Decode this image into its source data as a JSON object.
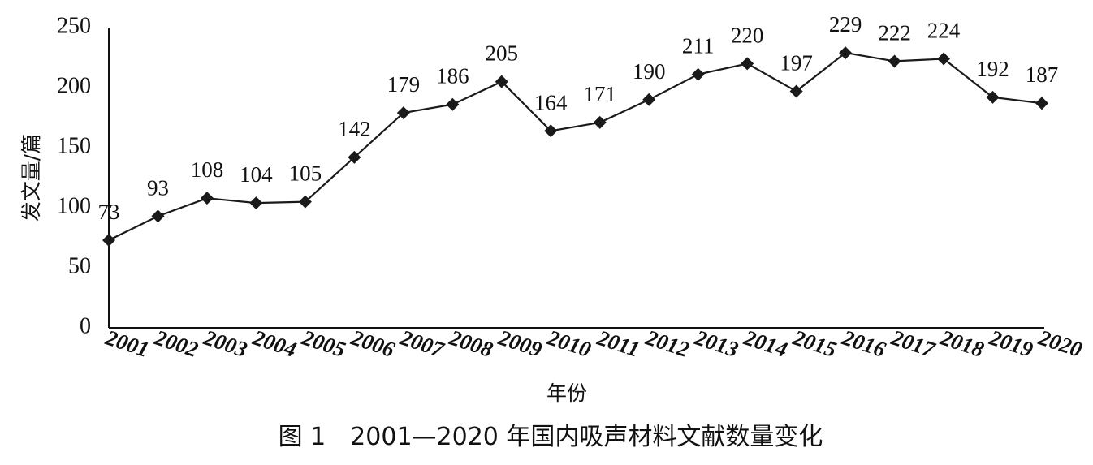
{
  "chart_data": {
    "type": "line",
    "categories": [
      "2001",
      "2002",
      "2003",
      "2004",
      "2005",
      "2006",
      "2007",
      "2008",
      "2009",
      "2010",
      "2011",
      "2012",
      "2013",
      "2014",
      "2015",
      "2016",
      "2017",
      "2018",
      "2019",
      "2020"
    ],
    "values": [
      73,
      93,
      108,
      104,
      105,
      142,
      179,
      186,
      205,
      164,
      171,
      190,
      211,
      220,
      197,
      229,
      222,
      224,
      192,
      187
    ],
    "data_labels": [
      "73",
      "93",
      "108",
      "104",
      "105",
      "142",
      "179",
      "186",
      "205",
      "164",
      "171",
      "190",
      "211",
      "220",
      "197",
      "229",
      "222",
      "224",
      "192",
      "187"
    ],
    "y_ticks": [
      "0",
      "50",
      "100",
      "150",
      "200",
      "250"
    ],
    "ylim": [
      0,
      250
    ],
    "ylabel": "发文量/篇",
    "xlabel": "年份",
    "caption": "图 1　2001—2020 年国内吸声材料文献数量变化",
    "grid": false,
    "legend": "none",
    "marker": "diamond",
    "line_color": "#1a1a1a"
  }
}
